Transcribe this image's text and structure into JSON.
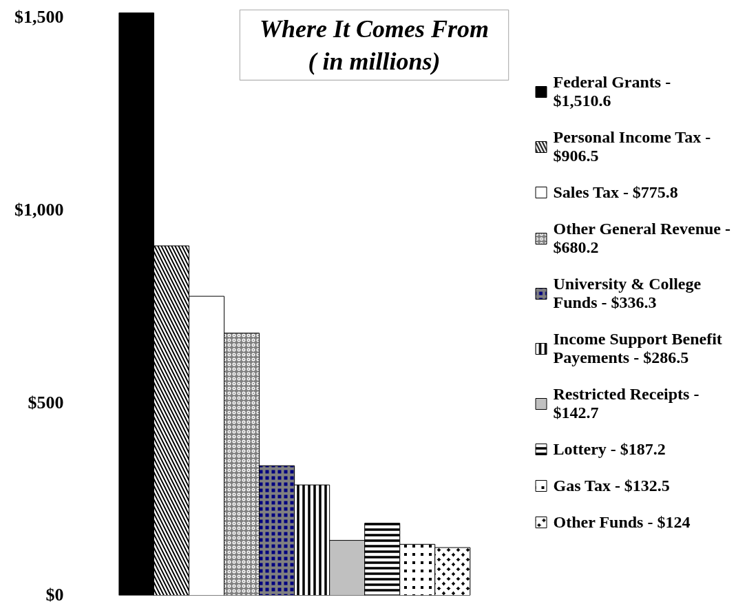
{
  "chart_data": {
    "type": "bar",
    "title": "Where It Comes From",
    "subtitle": "( in millions)",
    "categories": [
      null
    ],
    "series": [
      {
        "name": "Federal Grants - $1,510.6",
        "color": "#000000",
        "values": [
          1510.6
        ]
      },
      {
        "name": "Personal Income Tax - $906.5",
        "color": "#000000",
        "values": [
          906.5
        ]
      },
      {
        "name": "Sales Tax - $775.8",
        "color": "#ffffff",
        "values": [
          775.8
        ]
      },
      {
        "name": "Other General Revenue - $680.2",
        "color": "#808080",
        "values": [
          680.2
        ]
      },
      {
        "name": "University & College Funds - $336.3",
        "color": "#000080",
        "values": [
          336.3
        ]
      },
      {
        "name": "Income Support Benefit Payements - $286.5",
        "color": "#000000",
        "values": [
          286.5
        ]
      },
      {
        "name": "Restricted Receipts - $142.7",
        "color": "#c0c0c0",
        "values": [
          142.7
        ]
      },
      {
        "name": "Lottery - $187.2",
        "color": "#000000",
        "values": [
          187.2
        ]
      },
      {
        "name": "Gas Tax - $132.5",
        "color": "#000000",
        "values": [
          132.5
        ]
      },
      {
        "name": "Other Funds - $124",
        "color": "#000000",
        "values": [
          124
        ]
      }
    ],
    "ylim": [
      0,
      1520
    ],
    "yticks": [
      {
        "value": 0,
        "label": "$0"
      },
      {
        "value": 500,
        "label": "$500"
      },
      {
        "value": 1000,
        "label": "$1,000"
      },
      {
        "value": 1500,
        "label": "$1,500"
      }
    ],
    "legend": "right",
    "tick_labels": "y"
  }
}
